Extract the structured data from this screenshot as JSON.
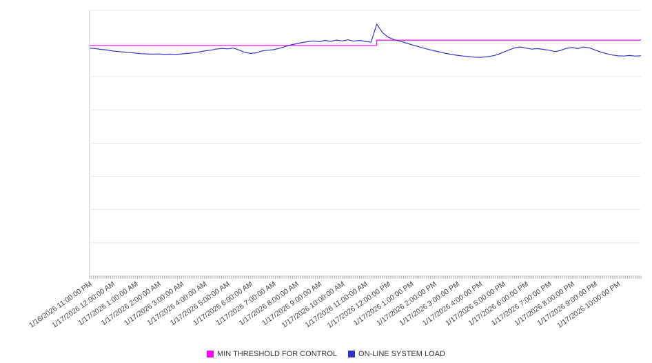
{
  "chart_data": {
    "type": "line",
    "title": "",
    "xlabel": "",
    "ylabel": "",
    "ylim": [
      0,
      100
    ],
    "x_range_hours": [
      0,
      24
    ],
    "grid": {
      "horizontal": true,
      "divisions": 8
    },
    "axis_color": "#cccccc",
    "grid_color": "#e8e8e8",
    "tick_color": "#aaaaaa",
    "x_ticks": {
      "minor_tick_minutes": 5,
      "hour_offsets": [
        0,
        1,
        2,
        3,
        4,
        5,
        6,
        7,
        8,
        9,
        10,
        11,
        12,
        13,
        14,
        15,
        16,
        17,
        18,
        19,
        20,
        21,
        22,
        23
      ],
      "labels": [
        "1/16/2026 11:00:00 PM",
        "1/17/2026 12:00:00 AM",
        "1/17/2026 1:00:00 AM",
        "1/17/2026 2:00:00 AM",
        "1/17/2026 3:00:00 AM",
        "1/17/2026 4:00:00 AM",
        "1/17/2026 5:00:00 AM",
        "1/17/2026 6:00:00 AM",
        "1/17/2026 7:00:00 AM",
        "1/17/2026 8:00:00 AM",
        "1/17/2026 9:00:00 AM",
        "1/17/2026 10:00:00 AM",
        "1/17/2026 11:00:00 AM",
        "1/17/2026 12:00:00 PM",
        "1/17/2026 1:00:00 PM",
        "1/17/2026 2:00:00 PM",
        "1/17/2026 3:00:00 PM",
        "1/17/2026 4:00:00 PM",
        "1/17/2026 5:00:00 PM",
        "1/17/2026 6:00:00 PM",
        "1/17/2026 7:00:00 PM",
        "1/17/2026 8:00:00 PM",
        "1/17/2026 9:00:00 PM",
        "1/17/2026 10:00:00 PM"
      ]
    },
    "series": [
      {
        "name": "MIN THRESHOLD FOR CONTROL",
        "color": "#ff00ff",
        "x": [
          0,
          12.5,
          12.5,
          24
        ],
        "values": [
          86.8,
          86.8,
          88.8,
          88.8
        ]
      },
      {
        "name": "ON-LINE SYSTEM LOAD",
        "color": "#3333cc",
        "x_start": 0,
        "x_step": 0.25,
        "values": [
          85.8,
          85.6,
          85.3,
          85.1,
          84.7,
          84.5,
          84.3,
          84.1,
          83.9,
          83.7,
          83.6,
          83.5,
          83.6,
          83.4,
          83.5,
          83.4,
          83.6,
          83.8,
          84.0,
          84.3,
          84.7,
          85.0,
          85.4,
          85.7,
          85.5,
          85.8,
          85.1,
          84.2,
          83.8,
          84.0,
          84.7,
          85.0,
          85.2,
          85.7,
          86.3,
          87.0,
          87.4,
          87.9,
          88.2,
          88.5,
          88.2,
          88.7,
          88.3,
          88.8,
          88.5,
          88.9,
          88.4,
          88.7,
          88.3,
          88.0,
          94.8,
          91.6,
          89.9,
          89.0,
          88.4,
          87.8,
          87.1,
          86.5,
          85.9,
          85.3,
          84.8,
          84.3,
          83.8,
          83.4,
          83.1,
          82.8,
          82.6,
          82.4,
          82.3,
          82.5,
          82.8,
          83.3,
          84.2,
          85.1,
          85.9,
          86.2,
          85.8,
          85.4,
          85.6,
          85.3,
          85.0,
          84.5,
          84.9,
          85.7,
          86.0,
          85.6,
          86.2,
          85.9,
          85.1,
          84.3,
          83.7,
          83.2,
          82.9,
          82.8,
          83.0,
          82.8,
          82.9
        ]
      }
    ],
    "legend": {
      "position": "bottom-center"
    }
  }
}
